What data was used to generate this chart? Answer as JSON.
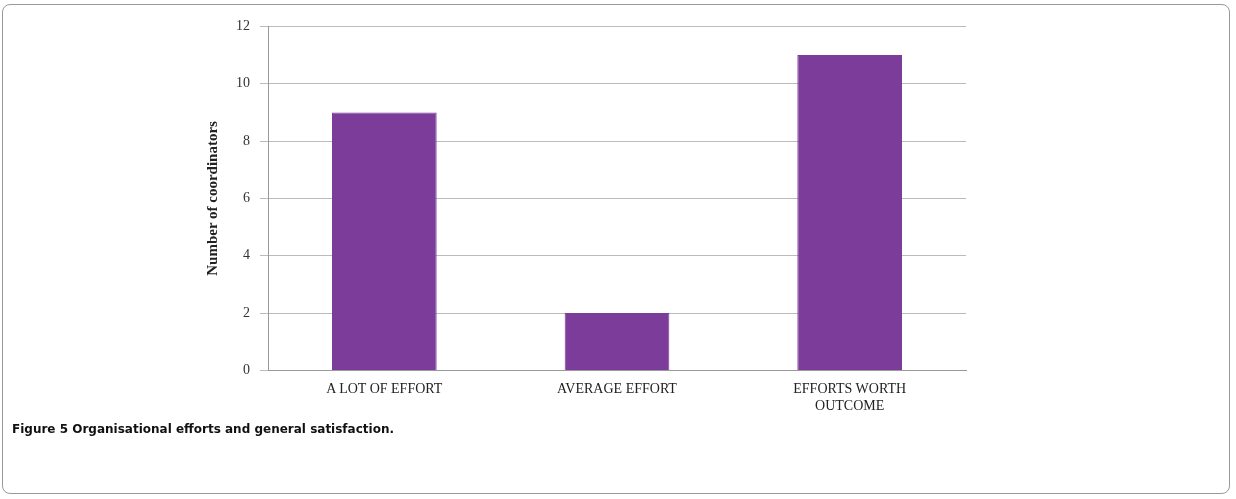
{
  "chart_data": {
    "type": "bar",
    "ylabel": "Number of coordinators",
    "categories": [
      "A LOT OF EFFORT",
      "AVERAGE EFFORT",
      "EFFORTS WORTH OUTCOME"
    ],
    "values": [
      9,
      2,
      11
    ],
    "color": "#7b3c9a",
    "ylim": [
      0,
      12
    ],
    "yticks": [
      0,
      2,
      4,
      6,
      8,
      10,
      12
    ],
    "grid": "y",
    "annotations": [
      "Figure 5 Organisational efforts and general satisfaction."
    ]
  }
}
